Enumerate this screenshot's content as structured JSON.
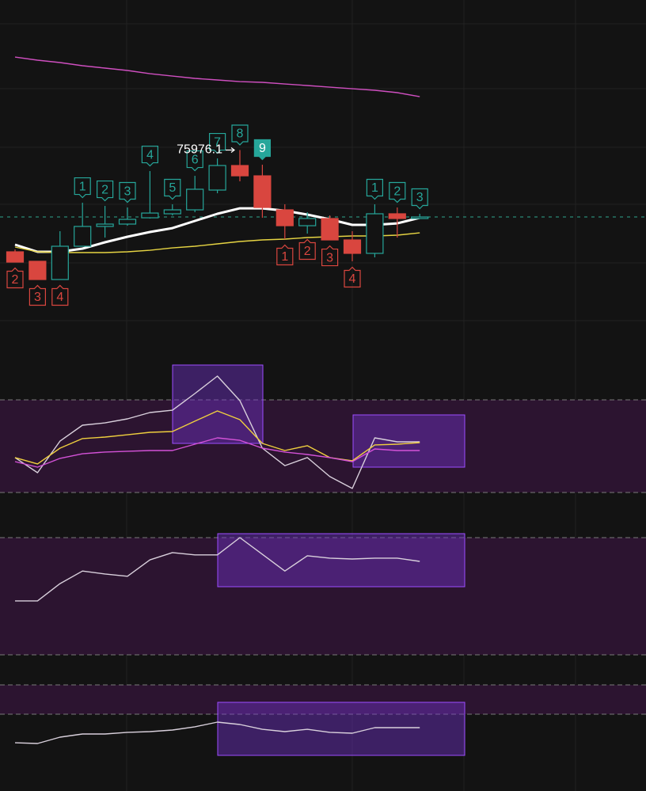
{
  "chart_data": [
    {
      "type": "candlestick",
      "categories": [
        null,
        null,
        null,
        null,
        null,
        null,
        null,
        null,
        null,
        null,
        null,
        null,
        null,
        null,
        null,
        null,
        null,
        null,
        null
      ],
      "open": [
        74603,
        74475,
        74229,
        74678,
        74945,
        74977,
        75062,
        75116,
        75169,
        75436,
        75767,
        75628,
        75169,
        74955,
        75052,
        74763,
        74582,
        75116,
        75052
      ],
      "high": [
        74635,
        74475,
        74881,
        75265,
        75222,
        75201,
        75692,
        75244,
        75628,
        75863,
        75976.1,
        75778,
        75244,
        75137,
        75094,
        74881,
        75244,
        75201,
        75116
      ],
      "low": [
        74464,
        74229,
        74229,
        74678,
        74795,
        74955,
        75052,
        75094,
        75137,
        75393,
        75554,
        75062,
        74774,
        74849,
        74763,
        74475,
        74528,
        74795,
        75052
      ],
      "close": [
        74464,
        74229,
        74678,
        74945,
        74977,
        75041,
        75126,
        75169,
        75447,
        75767,
        75628,
        75201,
        74955,
        75052,
        74763,
        74582,
        75116,
        75052,
        75073
      ],
      "up_color": "#26a69a",
      "down_color": "#d9463f",
      "ylim": [
        73300,
        78000
      ],
      "last_price": 75073,
      "last_price_color": "#2fa58c",
      "series": [
        {
          "color": "#ffffff",
          "values": [
            74699,
            74603,
            74603,
            74646,
            74731,
            74806,
            74870,
            74923,
            75020,
            75116,
            75190,
            75190,
            75158,
            75105,
            75041,
            74966,
            74966,
            74987,
            75062
          ]
        },
        {
          "color": "#e6d443",
          "values": [
            74667,
            74603,
            74592,
            74592,
            74592,
            74603,
            74624,
            74656,
            74678,
            74710,
            74742,
            74763,
            74774,
            74795,
            74806,
            74817,
            74817,
            74827,
            74859
          ]
        },
        {
          "color": "#cf4fc0",
          "values": [
            77230,
            77188,
            77156,
            77113,
            77081,
            77049,
            77006,
            76974,
            76942,
            76921,
            76899,
            76889,
            76867,
            76846,
            76824,
            76803,
            76782,
            76750,
            76696
          ]
        }
      ],
      "td_setup_length": 9,
      "td_above": [
        null,
        null,
        null,
        "1",
        "2",
        "3",
        "4",
        "5",
        "6",
        "7",
        "8",
        "9",
        null,
        null,
        null,
        null,
        "1",
        "2",
        "3"
      ],
      "td_below": [
        "2",
        "3",
        "4",
        null,
        null,
        null,
        null,
        null,
        null,
        null,
        null,
        null,
        "1",
        "2",
        "3",
        "4",
        null,
        null,
        null
      ]
    },
    {
      "type": "line",
      "ylim": [
        0,
        100
      ],
      "levels": [
        80,
        20
      ],
      "band_color": "#2c1430",
      "series": [
        {
          "color": "#d9d0dc",
          "values": [
            42.6,
            32.8,
            53.3,
            63.6,
            65.1,
            67.7,
            71.8,
            73.3,
            84.1,
            95.4,
            79.5,
            48.7,
            37.4,
            42.6,
            30.3,
            22.6,
            55.4,
            52.8,
            52.8
          ]
        },
        {
          "color": "#efcf3e",
          "values": [
            42.6,
            38.5,
            48.7,
            54.9,
            55.9,
            57.4,
            59.0,
            59.5,
            66.2,
            72.8,
            67.2,
            51.8,
            47.2,
            50.3,
            42.6,
            40.5,
            50.8,
            51.3,
            52.3
          ]
        },
        {
          "color": "#d452d8",
          "values": [
            40.0,
            36.4,
            42.1,
            45.1,
            46.2,
            46.7,
            47.2,
            47.2,
            51.3,
            55.4,
            53.8,
            48.7,
            46.2,
            44.6,
            42.6,
            40.0,
            48.2,
            47.2,
            47.2
          ]
        }
      ]
    },
    {
      "type": "line",
      "ylim": [
        0,
        100
      ],
      "levels": [
        70,
        30
      ],
      "band_color": "#2c1430",
      "series": [
        {
          "color": "#d9d0dc",
          "values": [
            48.4,
            48.4,
            54.3,
            58.6,
            57.6,
            56.8,
            62.4,
            64.9,
            64.1,
            64.1,
            70.0,
            64.3,
            58.6,
            63.8,
            63.0,
            62.7,
            63.0,
            63.0,
            61.9
          ]
        }
      ]
    },
    {
      "type": "line",
      "ylim": [
        0,
        100
      ],
      "levels": [
        100,
        80
      ],
      "band_color": "#2c1430",
      "series": [
        {
          "color": "#d9d0dc",
          "values": [
            60.5,
            60.0,
            64.3,
            66.5,
            66.5,
            67.6,
            68.1,
            69.2,
            71.4,
            74.6,
            73.0,
            69.7,
            68.1,
            69.7,
            67.6,
            67.0,
            70.8,
            70.8,
            70.8
          ]
        }
      ]
    }
  ]
}
